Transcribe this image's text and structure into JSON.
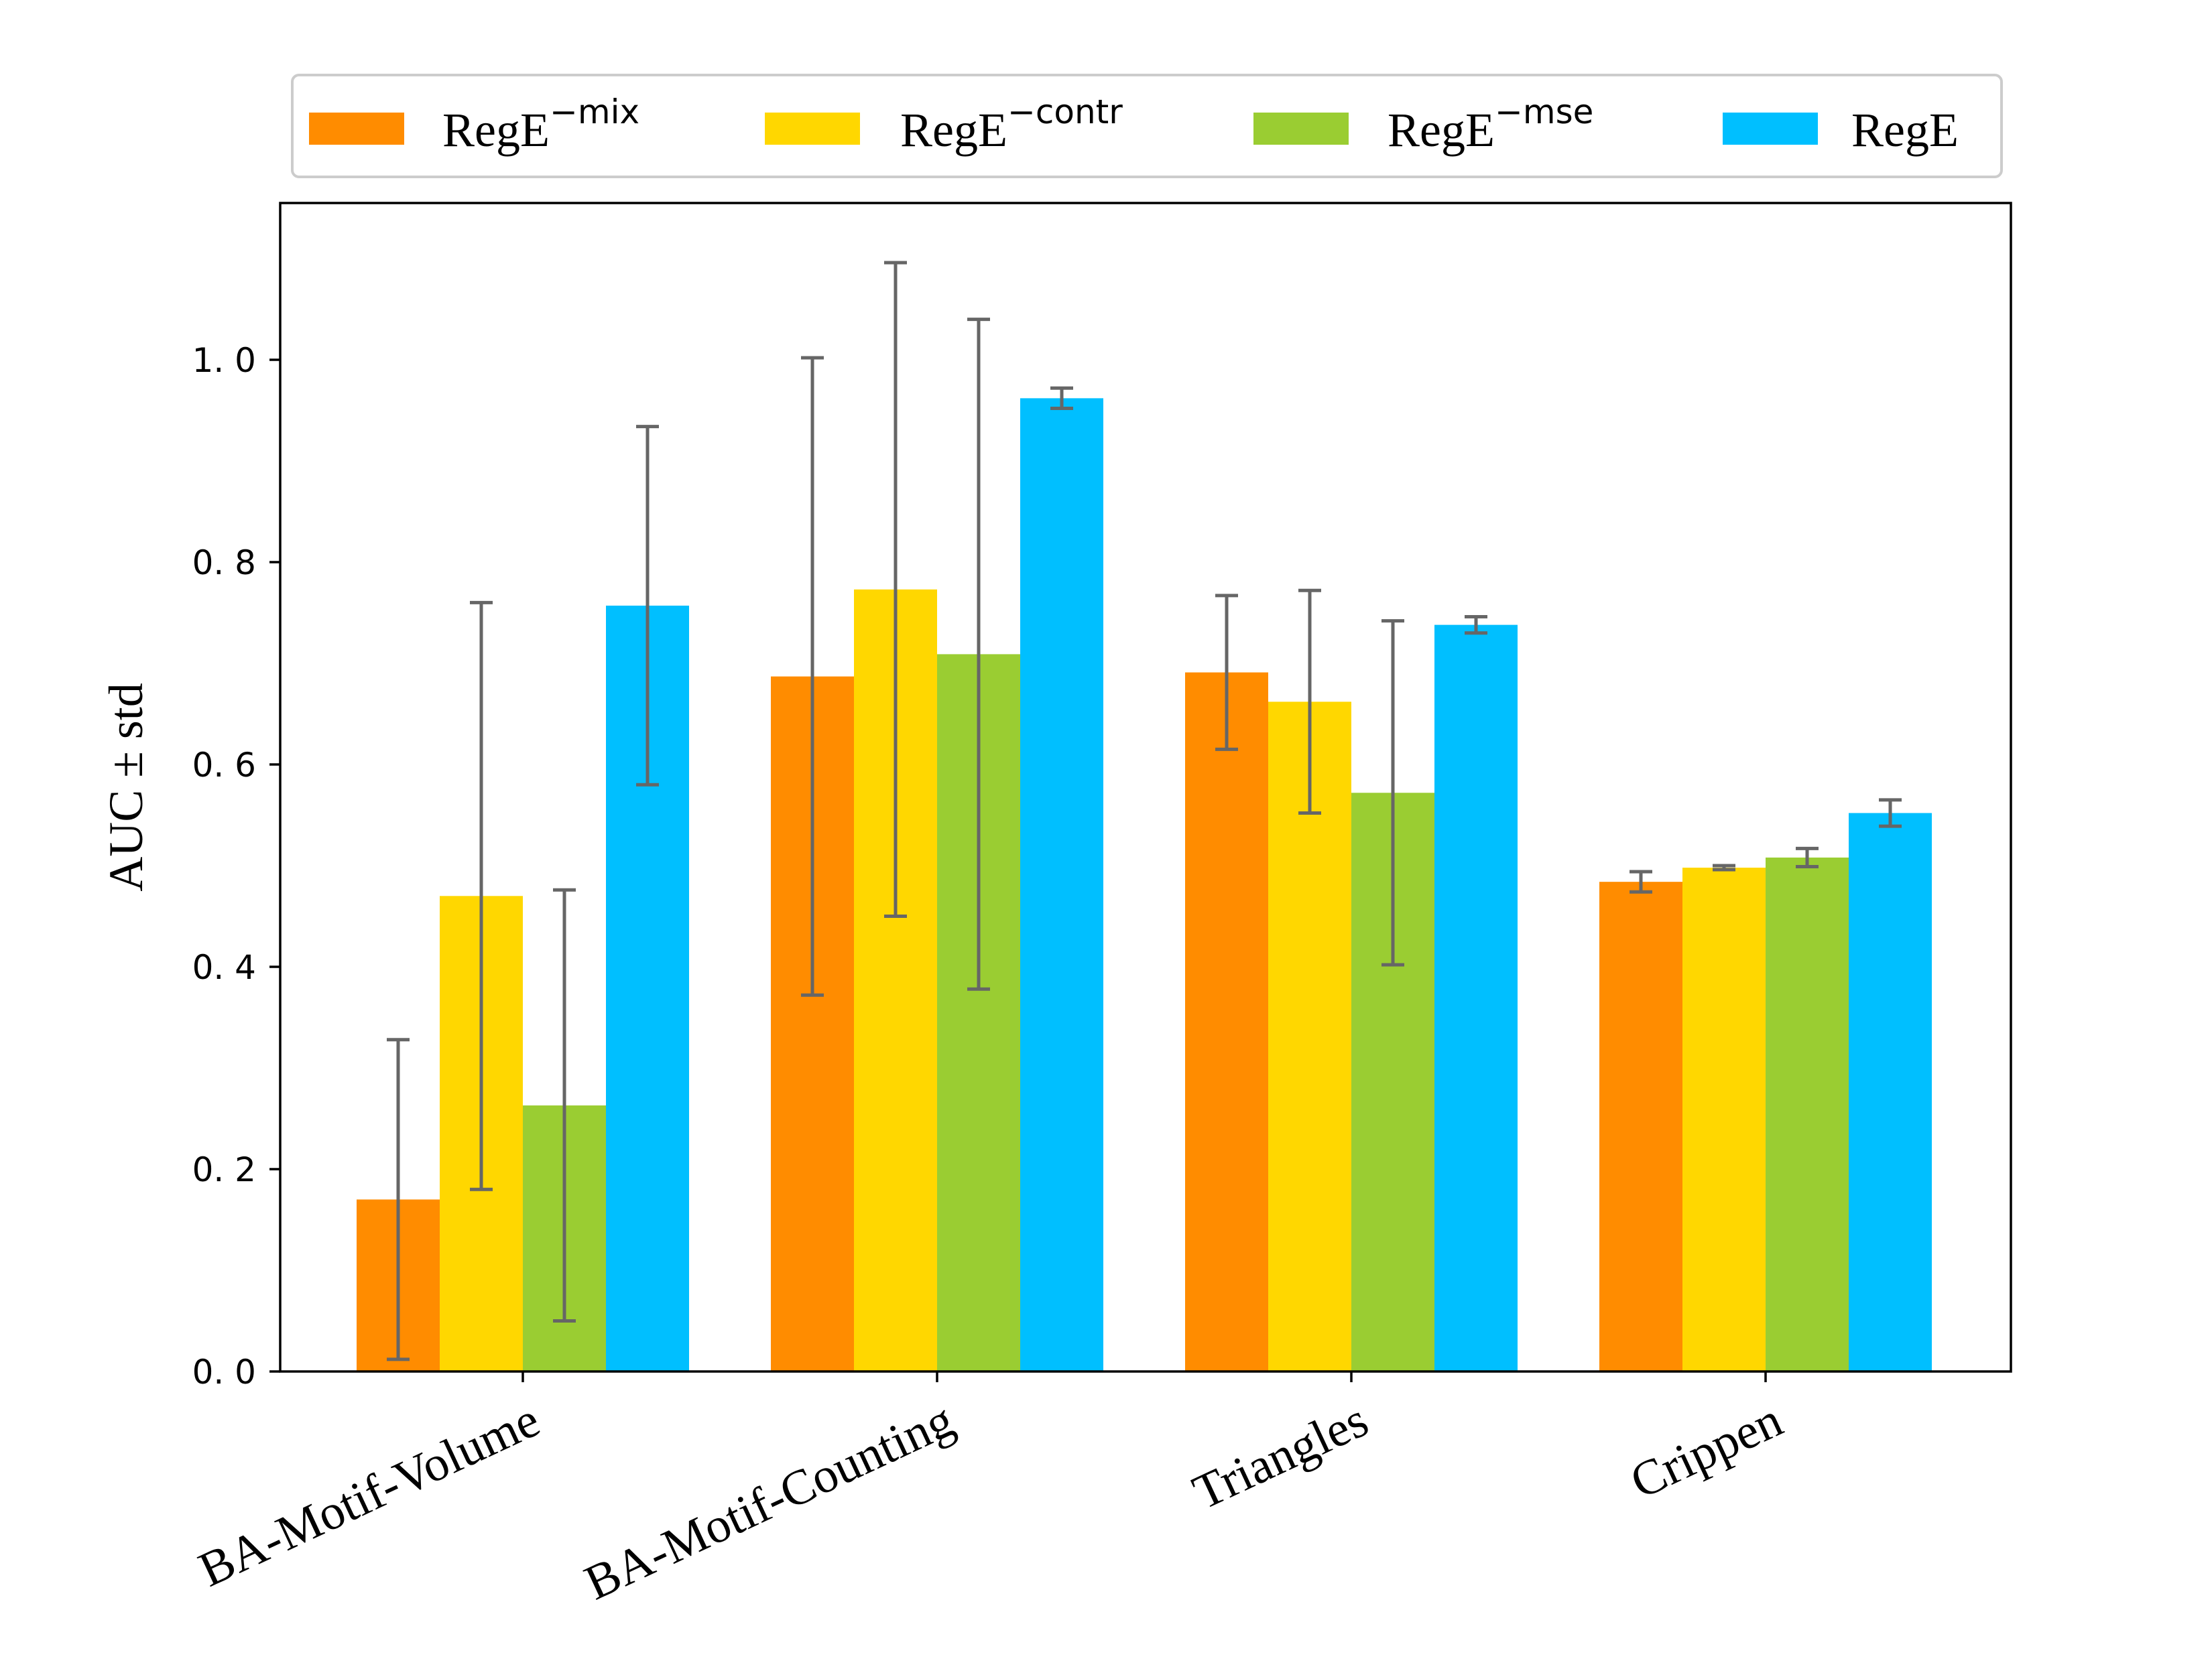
{
  "chart_data": {
    "type": "bar",
    "title": "",
    "xlabel": "",
    "ylabel": "AUC ± std",
    "ylim": [
      0,
      1.15
    ],
    "yticks": [
      0.0,
      0.2,
      0.4,
      0.6,
      0.8,
      1.0
    ],
    "ytick_labels": [
      "0. 0",
      "0. 2",
      "0. 4",
      "0. 6",
      "0. 8",
      "1. 0"
    ],
    "categories": [
      "BA-Motif-Volume",
      "BA-Motif-Counting",
      "Triangles",
      "Crippen"
    ],
    "legend_position": "top, above plot",
    "series": [
      {
        "name": "RegE",
        "superscript": "−mix",
        "color": "#FF8C00",
        "values": [
          0.17,
          0.687,
          0.691,
          0.484
        ],
        "errors": [
          0.158,
          0.315,
          0.076,
          0.01
        ]
      },
      {
        "name": "RegE",
        "superscript": "−contr",
        "color": "#FFD700",
        "values": [
          0.47,
          0.773,
          0.662,
          0.498
        ],
        "errors": [
          0.29,
          0.323,
          0.11,
          0.002
        ]
      },
      {
        "name": "RegE",
        "superscript": "−mse",
        "color": "#9ACD32",
        "values": [
          0.263,
          0.709,
          0.572,
          0.508
        ],
        "errors": [
          0.213,
          0.331,
          0.17,
          0.009
        ]
      },
      {
        "name": "RegE",
        "superscript": "",
        "color": "#00BFFF",
        "values": [
          0.757,
          0.962,
          0.738,
          0.552
        ],
        "errors": [
          0.177,
          0.01,
          0.008,
          0.013
        ]
      }
    ],
    "error_bar_color": "#666666"
  }
}
